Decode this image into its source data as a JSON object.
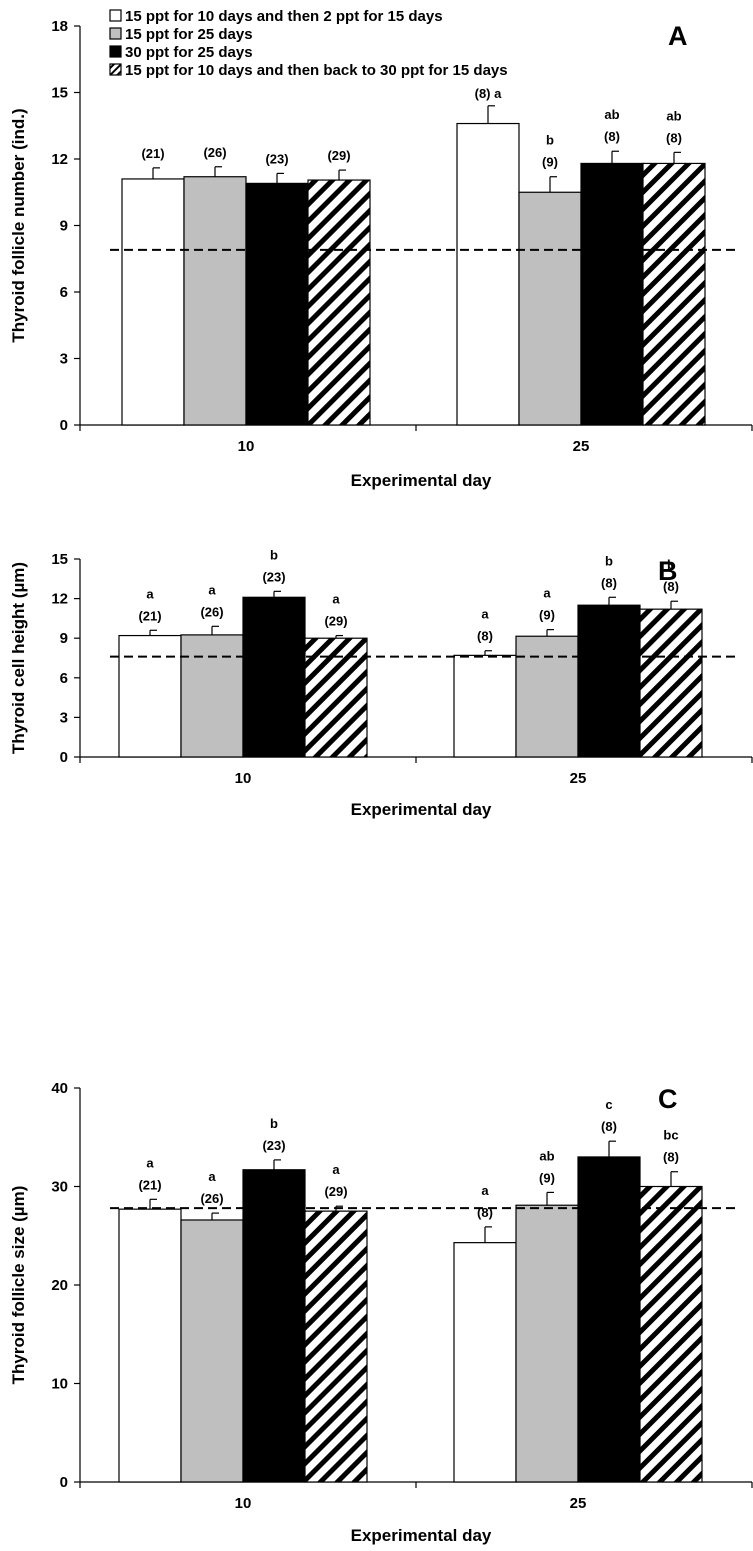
{
  "colors": {
    "series": [
      "#ffffff",
      "#bfbfbf",
      "#000000",
      "hatch"
    ],
    "axis": "#000000"
  },
  "legend": {
    "items": [
      "15 ppt for 10 days and then 2 ppt for 15 days",
      "15 ppt for 25 days",
      "30 ppt for 25 days",
      "15 ppt for 10 days and then back to 30 ppt for 15 days"
    ]
  },
  "chart_data": [
    {
      "type": "bar",
      "panel": "A",
      "ylabel": "Thyroid follicle number (ind.)",
      "xlabel": "Experimental day",
      "ylim": [
        0,
        18
      ],
      "yticks": [
        0,
        3,
        6,
        9,
        12,
        15,
        18
      ],
      "categories": [
        "10",
        "25"
      ],
      "reference_line": 7.9,
      "series": [
        {
          "name": "15 ppt for 10 days and then 2 ppt for 15 days",
          "values": [
            11.1,
            13.6
          ],
          "errors": [
            0.5,
            0.8
          ],
          "n": [
            "(21)",
            "(8)"
          ],
          "letters": [
            "",
            "a"
          ]
        },
        {
          "name": "15 ppt for 25 days",
          "values": [
            11.2,
            10.5
          ],
          "errors": [
            0.45,
            0.7
          ],
          "n": [
            "(26)",
            "(9)"
          ],
          "letters": [
            "",
            "b"
          ]
        },
        {
          "name": "30 ppt for 25 days",
          "values": [
            10.9,
            11.8
          ],
          "errors": [
            0.45,
            0.55
          ],
          "n": [
            "(23)",
            "(8)"
          ],
          "letters": [
            "",
            "ab"
          ]
        },
        {
          "name": "15 ppt for 10 days and then back to 30 ppt for 15 days",
          "values": [
            11.05,
            11.8
          ],
          "errors": [
            0.45,
            0.5
          ],
          "n": [
            "(29)",
            "(8)"
          ],
          "letters": [
            "",
            "ab"
          ]
        }
      ]
    },
    {
      "type": "bar",
      "panel": "B",
      "ylabel": "Thyroid cell height (µm)",
      "xlabel": "Experimental day",
      "ylim": [
        0,
        15
      ],
      "yticks": [
        0,
        3,
        6,
        9,
        12,
        15
      ],
      "categories": [
        "10",
        "25"
      ],
      "reference_line": 7.6,
      "series": [
        {
          "name": "15 ppt for 10 days and then 2 ppt for 15 days",
          "values": [
            9.2,
            7.7
          ],
          "errors": [
            0.4,
            0.35
          ],
          "n": [
            "(21)",
            "(8)"
          ],
          "letters": [
            "a",
            "a"
          ]
        },
        {
          "name": "15 ppt for 25 days",
          "values": [
            9.25,
            9.15
          ],
          "errors": [
            0.65,
            0.5
          ],
          "n": [
            "(26)",
            "(9)"
          ],
          "letters": [
            "a",
            "a"
          ]
        },
        {
          "name": "30 ppt for 25 days",
          "values": [
            12.1,
            11.5
          ],
          "errors": [
            0.45,
            0.6
          ],
          "n": [
            "(23)",
            "(8)"
          ],
          "letters": [
            "b",
            "b"
          ]
        },
        {
          "name": "15 ppt for 10 days and then back to 30 ppt for 15 days",
          "values": [
            9.0,
            11.2
          ],
          "errors": [
            0.2,
            0.6
          ],
          "n": [
            "(29)",
            "(8)"
          ],
          "letters": [
            "a",
            "b"
          ]
        }
      ]
    },
    {
      "type": "bar",
      "panel": "C",
      "ylabel": "Thyroid follicle size (µm)",
      "xlabel": "Experimental day",
      "ylim": [
        0,
        40
      ],
      "yticks": [
        0,
        10,
        20,
        30,
        40
      ],
      "categories": [
        "10",
        "25"
      ],
      "reference_line": 27.8,
      "series": [
        {
          "name": "15 ppt for 10 days and then 2 ppt for 15 days",
          "values": [
            27.7,
            24.3
          ],
          "errors": [
            1.0,
            1.6
          ],
          "n": [
            "(21)",
            "(8)"
          ],
          "letters": [
            "a",
            "a"
          ]
        },
        {
          "name": "15 ppt for 25 days",
          "values": [
            26.6,
            28.1
          ],
          "errors": [
            0.7,
            1.3
          ],
          "n": [
            "(26)",
            "(9)"
          ],
          "letters": [
            "a",
            "ab"
          ]
        },
        {
          "name": "30 ppt for 25 days",
          "values": [
            31.7,
            33.0
          ],
          "errors": [
            1.0,
            1.6
          ],
          "n": [
            "(23)",
            "(8)"
          ],
          "letters": [
            "b",
            "c"
          ]
        },
        {
          "name": "15 ppt for 10 days and then back to 30 ppt for 15 days",
          "values": [
            27.5,
            30.0
          ],
          "errors": [
            0.5,
            1.5
          ],
          "n": [
            "(29)",
            "(8)"
          ],
          "letters": [
            "a",
            "bc"
          ]
        }
      ]
    }
  ]
}
